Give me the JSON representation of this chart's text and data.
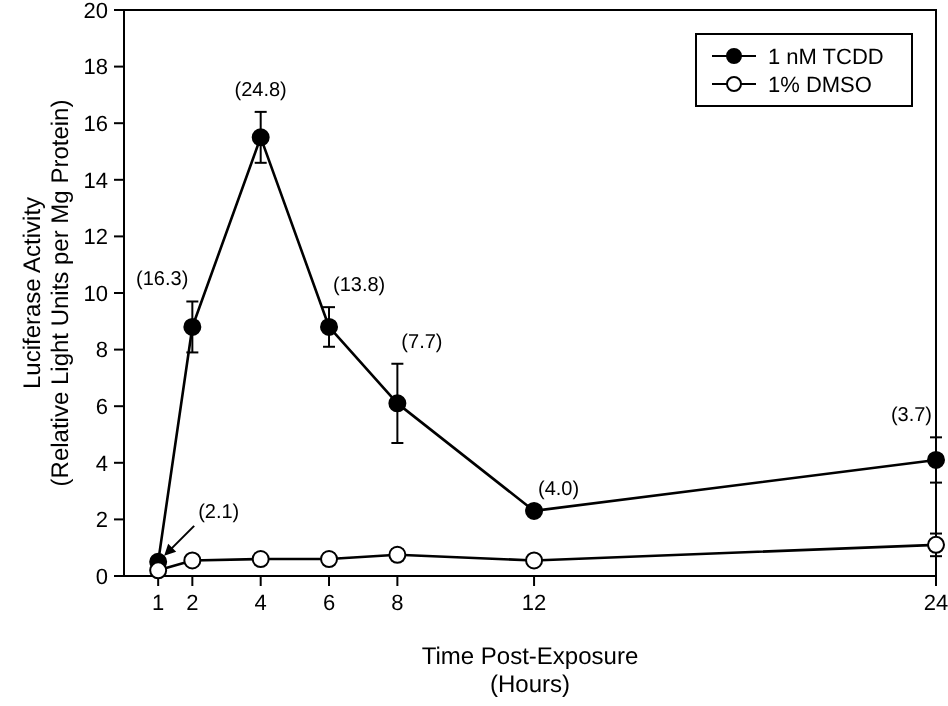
{
  "chart_data": {
    "type": "line",
    "xlabel": "Time Post-Exposure\n(Hours)",
    "ylabel": "Luciferase Activity\n(Relative Light Units per Mg Protein)",
    "x": [
      1,
      2,
      4,
      6,
      8,
      12,
      24
    ],
    "xlim": [
      0,
      24
    ],
    "xticks": [
      1,
      2,
      4,
      6,
      8,
      12,
      24
    ],
    "ylim": [
      0,
      20
    ],
    "yticks": [
      0,
      2,
      4,
      6,
      8,
      10,
      12,
      14,
      16,
      18,
      20
    ],
    "series": [
      {
        "name": "1 nM TCDD",
        "color": "#000000",
        "values": [
          0.5,
          8.8,
          15.5,
          8.8,
          6.1,
          2.3,
          4.1
        ],
        "errors": [
          null,
          0.9,
          0.9,
          0.7,
          1.4,
          null,
          0.8
        ]
      },
      {
        "name": "1% DMSO",
        "color": "#000000",
        "values": [
          0.2,
          0.55,
          0.6,
          0.6,
          0.75,
          0.55,
          1.1
        ],
        "errors": [
          null,
          null,
          null,
          0.2,
          0.2,
          null,
          0.4
        ]
      }
    ],
    "annotations": [
      {
        "text": "(2.1)",
        "x": 1,
        "y": 0.5
      },
      {
        "text": "(16.3)",
        "x": 2,
        "y": 8.8
      },
      {
        "text": "(24.8)",
        "x": 4,
        "y": 15.5
      },
      {
        "text": "(13.8)",
        "x": 6,
        "y": 8.8
      },
      {
        "text": "(7.7)",
        "x": 8,
        "y": 6.1
      },
      {
        "text": "(4.0)",
        "x": 12,
        "y": 2.3
      },
      {
        "text": "(3.7)",
        "x": 24,
        "y": 4.1
      }
    ],
    "marker": "circle",
    "legend": "top right",
    "grid": false
  }
}
